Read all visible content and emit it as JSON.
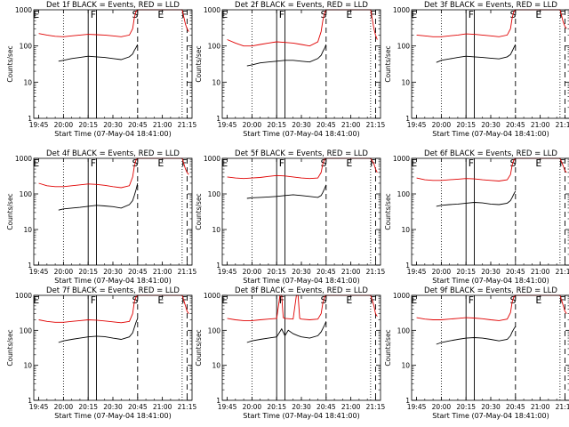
{
  "figure": {
    "xlabel": "Start Time (07-May-04 18:41:00)",
    "ylabel": "Counts/sec",
    "x_tick_labels": [
      "19:45",
      "20:00",
      "20:15",
      "20:30",
      "20:45",
      "21:00",
      "21:15"
    ],
    "y_tick_labels": [
      "1",
      "10",
      "100",
      "1000"
    ],
    "region_labels": [
      {
        "t": 19.72,
        "label": "E"
      },
      {
        "t": 20.3,
        "label": "F"
      },
      {
        "t": 20.72,
        "label": "S"
      },
      {
        "t": 20.98,
        "label": "E"
      },
      {
        "t": 21.22,
        "label": "F"
      }
    ],
    "colors": {
      "events": "#000000",
      "lld": "#e00000",
      "axes": "#000000"
    }
  },
  "chart_data": [
    {
      "type": "line",
      "title": "Det 1f BLACK = Events, RED = LLD",
      "xlabel": "Start Time (07-May-04 18:41:00)",
      "ylabel": "Counts/sec",
      "yscale": "log",
      "xlim": [
        "19:42",
        "21:18"
      ],
      "ylim": [
        1,
        1000
      ],
      "series": [
        {
          "name": "Events",
          "color": "#000000",
          "x": [
            "19:57",
            "20:00",
            "20:05",
            "20:10",
            "20:15",
            "20:20",
            "20:25",
            "20:30",
            "20:35",
            "20:40",
            "20:42",
            "20:43",
            "20:44",
            "20:45"
          ],
          "y": [
            38,
            40,
            45,
            48,
            52,
            50,
            48,
            45,
            42,
            50,
            60,
            75,
            90,
            110
          ]
        },
        {
          "name": "LLD",
          "color": "#e00000",
          "x": [
            "19:45",
            "19:50",
            "19:55",
            "20:00",
            "20:05",
            "20:10",
            "20:15",
            "20:20",
            "20:25",
            "20:30",
            "20:35",
            "20:40",
            "20:42",
            "20:43",
            "20:44",
            "20:45",
            "21:12",
            "21:14",
            "21:15",
            "21:16"
          ],
          "y": [
            220,
            200,
            185,
            180,
            190,
            200,
            210,
            205,
            200,
            190,
            180,
            200,
            300,
            600,
            900,
            1000,
            1000,
            400,
            300,
            250
          ]
        }
      ],
      "vlines": {
        "dotted": [
          "20:00",
          "21:12"
        ],
        "solid": [
          "20:15",
          "20:20"
        ],
        "dashed": [
          "20:45",
          "21:15"
        ]
      }
    },
    {
      "type": "line",
      "title": "Det 2f BLACK = Events, RED = LLD",
      "xlabel": "Start Time (07-May-04 18:41:00)",
      "ylabel": "Counts/sec",
      "yscale": "log",
      "xlim": [
        "19:42",
        "21:18"
      ],
      "ylim": [
        1,
        1000
      ],
      "series": [
        {
          "name": "Events",
          "color": "#000000",
          "x": [
            "19:57",
            "20:00",
            "20:05",
            "20:10",
            "20:15",
            "20:20",
            "20:25",
            "20:30",
            "20:35",
            "20:40",
            "20:42",
            "20:43",
            "20:44",
            "20:45"
          ],
          "y": [
            28,
            30,
            34,
            36,
            38,
            40,
            40,
            38,
            36,
            45,
            55,
            70,
            85,
            110
          ]
        },
        {
          "name": "LLD",
          "color": "#e00000",
          "x": [
            "19:45",
            "19:50",
            "19:55",
            "20:00",
            "20:05",
            "20:10",
            "20:15",
            "20:20",
            "20:25",
            "20:30",
            "20:35",
            "20:40",
            "20:42",
            "20:43",
            "20:44",
            "20:45",
            "21:12",
            "21:14",
            "21:15",
            "21:16"
          ],
          "y": [
            150,
            120,
            100,
            100,
            110,
            120,
            130,
            125,
            120,
            110,
            100,
            130,
            250,
            500,
            800,
            1000,
            1000,
            300,
            200,
            150
          ]
        }
      ],
      "vlines": {
        "dotted": [
          "20:00",
          "21:12"
        ],
        "solid": [
          "20:15",
          "20:20"
        ],
        "dashed": [
          "20:45",
          "21:15"
        ]
      }
    },
    {
      "type": "line",
      "title": "Det 3f BLACK = Events, RED = LLD",
      "xlabel": "Start Time (07-May-04 18:41:00)",
      "ylabel": "Counts/sec",
      "yscale": "log",
      "xlim": [
        "19:42",
        "21:18"
      ],
      "ylim": [
        1,
        1000
      ],
      "series": [
        {
          "name": "Events",
          "color": "#000000",
          "x": [
            "19:57",
            "20:00",
            "20:05",
            "20:10",
            "20:15",
            "20:20",
            "20:25",
            "20:30",
            "20:35",
            "20:40",
            "20:42",
            "20:43",
            "20:44",
            "20:45"
          ],
          "y": [
            35,
            40,
            44,
            48,
            52,
            50,
            48,
            46,
            44,
            50,
            58,
            72,
            90,
            110
          ]
        },
        {
          "name": "LLD",
          "color": "#e00000",
          "x": [
            "19:45",
            "19:50",
            "19:55",
            "20:00",
            "20:05",
            "20:10",
            "20:15",
            "20:20",
            "20:25",
            "20:30",
            "20:35",
            "20:40",
            "20:42",
            "20:43",
            "20:44",
            "20:45",
            "21:12",
            "21:14",
            "21:15",
            "21:16"
          ],
          "y": [
            200,
            190,
            180,
            180,
            190,
            200,
            215,
            210,
            200,
            190,
            180,
            200,
            300,
            600,
            900,
            1000,
            1000,
            450,
            350,
            300
          ]
        }
      ],
      "vlines": {
        "dotted": [
          "20:00",
          "21:12"
        ],
        "solid": [
          "20:15",
          "20:20"
        ],
        "dashed": [
          "20:45",
          "21:15"
        ]
      }
    },
    {
      "type": "line",
      "title": "Det 4f BLACK = Events, RED = LLD",
      "xlabel": "Start Time (07-May-04 18:41:00)",
      "ylabel": "Counts/sec",
      "yscale": "log",
      "xlim": [
        "19:42",
        "21:18"
      ],
      "ylim": [
        1,
        1000
      ],
      "series": [
        {
          "name": "Events",
          "color": "#000000",
          "x": [
            "19:57",
            "20:00",
            "20:05",
            "20:10",
            "20:15",
            "20:20",
            "20:25",
            "20:30",
            "20:35",
            "20:40",
            "20:42",
            "20:43",
            "20:44",
            "20:45"
          ],
          "y": [
            35,
            38,
            40,
            42,
            45,
            48,
            46,
            44,
            40,
            50,
            65,
            90,
            130,
            200
          ]
        },
        {
          "name": "LLD",
          "color": "#e00000",
          "x": [
            "19:45",
            "19:50",
            "19:55",
            "20:00",
            "20:05",
            "20:10",
            "20:15",
            "20:20",
            "20:25",
            "20:30",
            "20:35",
            "20:40",
            "20:42",
            "20:43",
            "20:44",
            "20:45",
            "21:12",
            "21:14",
            "21:15",
            "21:16"
          ],
          "y": [
            200,
            170,
            160,
            160,
            170,
            180,
            190,
            185,
            175,
            160,
            150,
            170,
            300,
            600,
            900,
            1000,
            1000,
            500,
            400,
            350
          ]
        }
      ],
      "vlines": {
        "dotted": [
          "20:00",
          "21:12"
        ],
        "solid": [
          "20:15",
          "20:20"
        ],
        "dashed": [
          "20:45",
          "21:15"
        ]
      }
    },
    {
      "type": "line",
      "title": "Det 5f BLACK = Events, RED = LLD",
      "xlabel": "Start Time (07-May-04 18:41:00)",
      "ylabel": "Counts/sec",
      "yscale": "log",
      "xlim": [
        "19:42",
        "21:18"
      ],
      "ylim": [
        1,
        1000
      ],
      "series": [
        {
          "name": "Events",
          "color": "#000000",
          "x": [
            "19:57",
            "20:00",
            "20:05",
            "20:10",
            "20:15",
            "20:20",
            "20:25",
            "20:30",
            "20:35",
            "20:40",
            "20:42",
            "20:43",
            "20:44",
            "20:45"
          ],
          "y": [
            75,
            78,
            80,
            82,
            85,
            90,
            95,
            90,
            85,
            80,
            90,
            110,
            140,
            180
          ]
        },
        {
          "name": "LLD",
          "color": "#e00000",
          "x": [
            "19:45",
            "19:50",
            "19:55",
            "20:00",
            "20:05",
            "20:10",
            "20:15",
            "20:20",
            "20:25",
            "20:30",
            "20:35",
            "20:40",
            "20:42",
            "20:43",
            "20:44",
            "20:45",
            "21:12",
            "21:14",
            "21:15",
            "21:16"
          ],
          "y": [
            300,
            280,
            270,
            280,
            290,
            310,
            330,
            320,
            300,
            280,
            270,
            280,
            400,
            700,
            950,
            1000,
            1000,
            700,
            500,
            400
          ]
        }
      ],
      "vlines": {
        "dotted": [
          "20:00",
          "21:12"
        ],
        "solid": [
          "20:15",
          "20:20"
        ],
        "dashed": [
          "20:45",
          "21:15"
        ]
      }
    },
    {
      "type": "line",
      "title": "Det 6f BLACK = Events, RED = LLD",
      "xlabel": "Start Time (07-May-04 18:41:00)",
      "ylabel": "Counts/sec",
      "yscale": "log",
      "xlim": [
        "19:42",
        "21:18"
      ],
      "ylim": [
        1,
        1000
      ],
      "series": [
        {
          "name": "Events",
          "color": "#000000",
          "x": [
            "19:57",
            "20:00",
            "20:05",
            "20:10",
            "20:15",
            "20:20",
            "20:25",
            "20:30",
            "20:35",
            "20:40",
            "20:42",
            "20:43",
            "20:44",
            "20:45"
          ],
          "y": [
            45,
            48,
            50,
            52,
            55,
            58,
            56,
            52,
            50,
            55,
            65,
            80,
            100,
            120
          ]
        },
        {
          "name": "LLD",
          "color": "#e00000",
          "x": [
            "19:45",
            "19:50",
            "19:55",
            "20:00",
            "20:05",
            "20:10",
            "20:15",
            "20:20",
            "20:25",
            "20:30",
            "20:35",
            "20:40",
            "20:42",
            "20:43",
            "20:44",
            "20:45",
            "21:12",
            "21:14",
            "21:15",
            "21:16"
          ],
          "y": [
            280,
            250,
            240,
            240,
            250,
            260,
            270,
            265,
            250,
            240,
            230,
            250,
            350,
            650,
            900,
            1000,
            1000,
            600,
            450,
            400
          ]
        }
      ],
      "vlines": {
        "dotted": [
          "20:00",
          "21:12"
        ],
        "solid": [
          "20:15",
          "20:20"
        ],
        "dashed": [
          "20:45",
          "21:15"
        ]
      }
    },
    {
      "type": "line",
      "title": "Det 7f BLACK = Events, RED = LLD",
      "xlabel": "Start Time (07-May-04 18:41:00)",
      "ylabel": "Counts/sec",
      "yscale": "log",
      "xlim": [
        "19:42",
        "21:18"
      ],
      "ylim": [
        1,
        1000
      ],
      "series": [
        {
          "name": "Events",
          "color": "#000000",
          "x": [
            "19:57",
            "20:00",
            "20:05",
            "20:10",
            "20:15",
            "20:20",
            "20:25",
            "20:30",
            "20:35",
            "20:40",
            "20:42",
            "20:43",
            "20:44",
            "20:45"
          ],
          "y": [
            45,
            50,
            55,
            60,
            65,
            68,
            66,
            60,
            55,
            65,
            85,
            120,
            170,
            220
          ]
        },
        {
          "name": "LLD",
          "color": "#e00000",
          "x": [
            "19:45",
            "19:50",
            "19:55",
            "20:00",
            "20:05",
            "20:10",
            "20:15",
            "20:20",
            "20:25",
            "20:30",
            "20:35",
            "20:40",
            "20:42",
            "20:43",
            "20:44",
            "20:45",
            "21:12",
            "21:14",
            "21:15",
            "21:16"
          ],
          "y": [
            200,
            180,
            170,
            170,
            180,
            190,
            200,
            195,
            185,
            175,
            165,
            180,
            300,
            650,
            900,
            1000,
            1000,
            500,
            350,
            300
          ]
        }
      ],
      "vlines": {
        "dotted": [
          "20:00",
          "21:12"
        ],
        "solid": [
          "20:15",
          "20:20"
        ],
        "dashed": [
          "20:45",
          "21:15"
        ]
      }
    },
    {
      "type": "line",
      "title": "Det 8f BLACK = Events, RED = LLD",
      "xlabel": "Start Time (07-May-04 18:41:00)",
      "ylabel": "Counts/sec",
      "yscale": "log",
      "xlim": [
        "19:42",
        "21:18"
      ],
      "ylim": [
        1,
        1000
      ],
      "series": [
        {
          "name": "Events",
          "color": "#000000",
          "x": [
            "19:57",
            "20:00",
            "20:05",
            "20:10",
            "20:15",
            "20:18",
            "20:20",
            "20:22",
            "20:25",
            "20:28",
            "20:30",
            "20:35",
            "20:40",
            "20:42",
            "20:44",
            "20:45"
          ],
          "y": [
            45,
            50,
            55,
            60,
            65,
            110,
            70,
            100,
            80,
            70,
            65,
            60,
            70,
            90,
            140,
            180
          ]
        },
        {
          "name": "LLD",
          "color": "#e00000",
          "x": [
            "19:45",
            "19:50",
            "19:55",
            "20:00",
            "20:05",
            "20:10",
            "20:15",
            "20:17",
            "20:18",
            "20:19",
            "20:20",
            "20:25",
            "20:27",
            "20:28",
            "20:29",
            "20:30",
            "20:35",
            "20:40",
            "20:42",
            "20:43",
            "20:44",
            "20:45",
            "21:12",
            "21:14",
            "21:15",
            "21:16"
          ],
          "y": [
            220,
            200,
            190,
            190,
            200,
            210,
            220,
            1000,
            1000,
            230,
            220,
            210,
            1000,
            1000,
            220,
            210,
            200,
            210,
            300,
            600,
            900,
            1000,
            1000,
            500,
            300,
            250
          ]
        }
      ],
      "vlines": {
        "dotted": [
          "20:00",
          "21:12"
        ],
        "solid": [
          "20:15",
          "20:20"
        ],
        "dashed": [
          "20:45",
          "21:15"
        ]
      }
    },
    {
      "type": "line",
      "title": "Det 9f BLACK = Events, RED = LLD",
      "xlabel": "Start Time (07-May-04 18:41:00)",
      "ylabel": "Counts/sec",
      "yscale": "log",
      "xlim": [
        "19:42",
        "21:18"
      ],
      "ylim": [
        1,
        1000
      ],
      "series": [
        {
          "name": "Events",
          "color": "#000000",
          "x": [
            "19:57",
            "20:00",
            "20:05",
            "20:10",
            "20:15",
            "20:20",
            "20:25",
            "20:30",
            "20:35",
            "20:40",
            "20:42",
            "20:43",
            "20:44",
            "20:45"
          ],
          "y": [
            40,
            45,
            50,
            55,
            60,
            62,
            60,
            55,
            50,
            55,
            70,
            90,
            110,
            130
          ]
        },
        {
          "name": "LLD",
          "color": "#e00000",
          "x": [
            "19:45",
            "19:50",
            "19:55",
            "20:00",
            "20:05",
            "20:10",
            "20:15",
            "20:20",
            "20:25",
            "20:30",
            "20:35",
            "20:40",
            "20:42",
            "20:43",
            "20:44",
            "20:45",
            "21:12",
            "21:14",
            "21:15",
            "21:16"
          ],
          "y": [
            230,
            210,
            200,
            200,
            210,
            220,
            230,
            225,
            215,
            200,
            190,
            210,
            320,
            650,
            900,
            1000,
            1000,
            500,
            350,
            300
          ]
        }
      ],
      "vlines": {
        "dotted": [
          "20:00",
          "21:12"
        ],
        "solid": [
          "20:15",
          "20:20"
        ],
        "dashed": [
          "20:45",
          "21:15"
        ]
      }
    }
  ]
}
